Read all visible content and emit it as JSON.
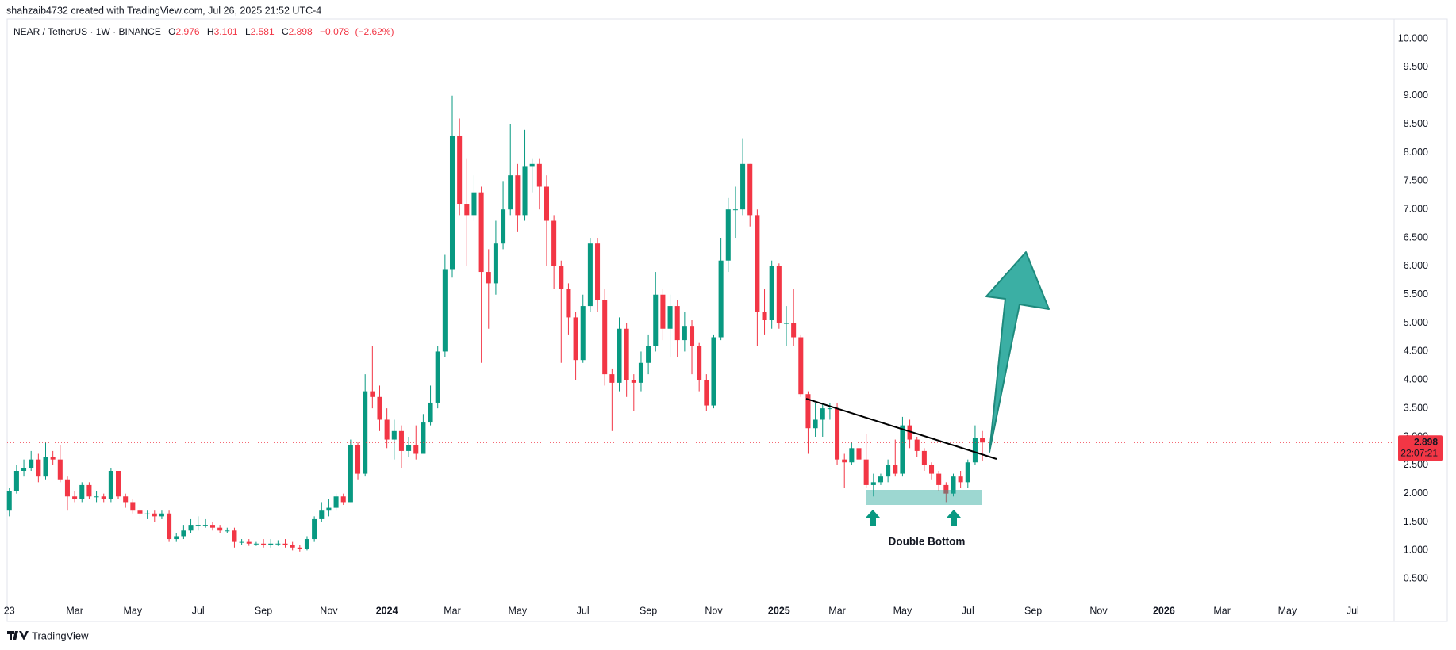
{
  "header": {
    "attribution": "shahzaib4732 created with TradingView.com, Jul 26, 2025 21:52 UTC-4"
  },
  "footer": {
    "brand": "TradingView"
  },
  "chart_data": {
    "type": "candlestick",
    "symbol": "NEAR / TetherUS · 1W · BINANCE",
    "ohlc_letters": [
      "O",
      "H",
      "L",
      "C"
    ],
    "change": {
      "value": -0.078,
      "label": "−0.078"
    },
    "change_percent": {
      "value": -2.62,
      "label": "(−2.62%)"
    },
    "countdown": "22:07:21",
    "annotation": "Double Bottom",
    "up_color": "#089981",
    "down_color": "#f23645",
    "grid": false,
    "open": [
      1.7,
      2.05,
      2.4,
      2.45,
      2.6,
      2.3,
      2.65,
      2.6,
      2.25,
      1.95,
      1.9,
      2.15,
      1.95,
      1.95,
      1.9,
      2.4,
      1.95,
      1.85,
      1.7,
      1.65,
      1.65,
      1.6,
      1.65,
      1.2,
      1.25,
      1.35,
      1.45,
      1.45,
      1.45,
      1.4,
      1.35,
      1.35,
      1.15,
      1.15,
      1.12,
      1.12,
      1.1,
      1.12,
      1.12,
      1.1,
      1.05,
      1.02,
      1.2,
      1.55,
      1.7,
      1.75,
      1.95,
      1.85,
      2.85,
      2.35,
      3.8,
      3.7,
      3.3,
      2.95,
      3.1,
      2.75,
      2.85,
      2.7,
      3.25,
      3.6,
      4.5,
      5.95,
      8.3,
      7.1,
      6.9,
      7.3,
      5.9,
      5.7,
      6.4,
      7.0,
      7.6,
      6.9,
      7.75,
      7.8,
      7.4,
      6.8,
      6.0,
      5.6,
      5.1,
      4.35,
      5.3,
      6.4,
      5.4,
      4.1,
      3.95,
      4.9,
      4.0,
      3.95,
      4.3,
      4.6,
      5.5,
      4.9,
      5.3,
      4.7,
      4.95,
      4.6,
      4.0,
      3.55,
      4.75,
      6.1,
      7.0,
      7.0,
      7.8,
      6.9,
      5.2,
      5.05,
      6.0,
      5.0,
      5.0,
      4.75,
      3.75,
      3.15,
      3.3,
      3.5,
      3.5,
      2.6,
      2.55,
      2.8,
      2.6,
      2.15,
      2.2,
      2.3,
      2.5,
      2.35,
      3.2,
      2.95,
      2.75,
      2.5,
      2.35,
      2.15,
      2.0,
      2.3,
      2.2,
      2.55,
      2.976
    ],
    "high": [
      2.1,
      2.5,
      2.6,
      2.75,
      2.7,
      2.9,
      2.75,
      2.85,
      2.3,
      2.05,
      2.2,
      2.2,
      2.05,
      2.0,
      2.45,
      2.4,
      2.0,
      1.9,
      1.75,
      1.7,
      1.7,
      1.7,
      1.7,
      1.3,
      1.45,
      1.55,
      1.6,
      1.55,
      1.5,
      1.45,
      1.4,
      1.4,
      1.2,
      1.2,
      1.15,
      1.2,
      1.2,
      1.18,
      1.2,
      1.15,
      1.1,
      1.25,
      1.6,
      1.85,
      1.9,
      2.0,
      2.0,
      2.95,
      2.9,
      4.1,
      4.6,
      3.9,
      3.5,
      3.3,
      3.2,
      3.0,
      3.2,
      3.4,
      3.9,
      4.6,
      6.2,
      9.0,
      8.6,
      7.9,
      7.6,
      7.4,
      6.3,
      6.8,
      7.5,
      8.5,
      7.8,
      8.4,
      7.9,
      7.9,
      7.6,
      6.9,
      6.1,
      5.7,
      5.2,
      5.5,
      6.5,
      6.5,
      5.6,
      4.2,
      5.1,
      5.0,
      4.1,
      4.5,
      4.8,
      5.9,
      5.6,
      5.5,
      5.4,
      5.2,
      5.05,
      4.65,
      4.1,
      4.8,
      6.5,
      7.2,
      7.4,
      8.25,
      7.8,
      7.0,
      5.6,
      6.1,
      6.05,
      5.3,
      5.6,
      4.8,
      3.8,
      3.6,
      3.6,
      3.6,
      3.6,
      2.7,
      2.9,
      2.85,
      3.05,
      2.35,
      2.35,
      2.6,
      2.95,
      3.35,
      3.3,
      3.0,
      2.8,
      2.55,
      2.4,
      2.2,
      2.35,
      2.4,
      2.6,
      3.2,
      3.101
    ],
    "low": [
      1.6,
      2.0,
      2.3,
      2.4,
      2.2,
      2.25,
      2.5,
      2.2,
      1.7,
      1.85,
      1.85,
      1.9,
      1.85,
      1.85,
      1.85,
      1.9,
      1.75,
      1.65,
      1.55,
      1.55,
      1.5,
      1.55,
      1.15,
      1.15,
      1.2,
      1.3,
      1.35,
      1.4,
      1.35,
      1.3,
      1.3,
      1.05,
      1.1,
      1.08,
      1.08,
      1.05,
      1.05,
      1.08,
      1.05,
      1.0,
      0.98,
      1.0,
      1.15,
      1.5,
      1.6,
      1.7,
      1.8,
      1.85,
      2.25,
      2.3,
      3.5,
      3.1,
      2.8,
      2.6,
      2.45,
      2.65,
      2.6,
      2.7,
      3.2,
      3.5,
      4.4,
      5.8,
      6.9,
      6.0,
      6.8,
      4.3,
      4.9,
      5.5,
      6.3,
      6.9,
      6.6,
      6.8,
      7.3,
      7.0,
      6.0,
      5.6,
      4.3,
      4.8,
      4.0,
      4.3,
      5.2,
      5.2,
      3.9,
      3.1,
      3.8,
      3.7,
      3.45,
      3.8,
      4.1,
      4.5,
      4.7,
      4.4,
      4.4,
      4.5,
      4.1,
      3.8,
      3.45,
      3.5,
      4.7,
      5.9,
      6.5,
      6.9,
      6.7,
      4.6,
      4.8,
      4.9,
      4.9,
      4.6,
      4.6,
      3.7,
      2.7,
      3.0,
      3.0,
      3.3,
      2.5,
      2.1,
      2.5,
      2.45,
      2.1,
      1.95,
      2.15,
      2.2,
      2.3,
      2.3,
      2.8,
      2.65,
      2.4,
      2.25,
      2.05,
      1.85,
      1.95,
      2.1,
      2.1,
      2.5,
      2.581
    ],
    "close": [
      2.05,
      2.4,
      2.45,
      2.6,
      2.3,
      2.65,
      2.6,
      2.25,
      1.95,
      1.9,
      2.15,
      1.95,
      1.95,
      1.9,
      2.4,
      1.95,
      1.85,
      1.7,
      1.65,
      1.65,
      1.6,
      1.65,
      1.2,
      1.25,
      1.35,
      1.45,
      1.45,
      1.45,
      1.4,
      1.35,
      1.35,
      1.15,
      1.15,
      1.12,
      1.12,
      1.1,
      1.12,
      1.12,
      1.1,
      1.05,
      1.02,
      1.2,
      1.55,
      1.7,
      1.75,
      1.95,
      1.85,
      2.85,
      2.35,
      3.8,
      3.7,
      3.3,
      2.95,
      3.1,
      2.75,
      2.85,
      2.7,
      3.25,
      3.6,
      4.5,
      5.95,
      8.3,
      7.1,
      6.9,
      7.3,
      5.9,
      5.7,
      6.4,
      7.0,
      7.6,
      6.9,
      7.75,
      7.8,
      7.4,
      6.8,
      6.0,
      5.6,
      5.1,
      4.35,
      5.3,
      6.4,
      5.4,
      4.1,
      3.95,
      4.9,
      4.0,
      3.95,
      4.3,
      4.6,
      5.5,
      4.9,
      5.3,
      4.7,
      4.95,
      4.6,
      4.0,
      3.55,
      4.75,
      6.1,
      7.0,
      7.0,
      7.8,
      6.9,
      5.2,
      5.05,
      6.0,
      5.0,
      5.0,
      4.75,
      3.75,
      3.15,
      3.3,
      3.5,
      3.5,
      2.6,
      2.55,
      2.8,
      2.6,
      2.15,
      2.2,
      2.3,
      2.5,
      2.35,
      3.2,
      2.95,
      2.75,
      2.5,
      2.35,
      2.15,
      2.0,
      2.3,
      2.2,
      2.55,
      2.976,
      2.898
    ],
    "xlim": [
      -0.3,
      190.7
    ],
    "xticks": [
      {
        "value": 0,
        "label": "23"
      },
      {
        "value": 9,
        "label": "Mar"
      },
      {
        "value": 17,
        "label": "May"
      },
      {
        "value": 26,
        "label": "Jul"
      },
      {
        "value": 35,
        "label": "Sep"
      },
      {
        "value": 44,
        "label": "Nov"
      },
      {
        "value": 52,
        "label": "2024"
      },
      {
        "value": 61,
        "label": "Mar"
      },
      {
        "value": 70,
        "label": "May"
      },
      {
        "value": 79,
        "label": "Jul"
      },
      {
        "value": 88,
        "label": "Sep"
      },
      {
        "value": 97,
        "label": "Nov"
      },
      {
        "value": 106,
        "label": "2025"
      },
      {
        "value": 114,
        "label": "Mar"
      },
      {
        "value": 123,
        "label": "May"
      },
      {
        "value": 132,
        "label": "Jul"
      },
      {
        "value": 141,
        "label": "Sep"
      },
      {
        "value": 150,
        "label": "Nov"
      },
      {
        "value": 159,
        "label": "2026"
      },
      {
        "value": 167,
        "label": "Mar"
      },
      {
        "value": 176,
        "label": "May"
      },
      {
        "value": 185,
        "label": "Jul"
      }
    ],
    "ylim": [
      -0.25,
      10.35
    ],
    "yticks": [
      {
        "value": 0.5,
        "label": "0.500"
      },
      {
        "value": 1,
        "label": "1.000"
      },
      {
        "value": 1.5,
        "label": "1.500"
      },
      {
        "value": 2,
        "label": "2.000"
      },
      {
        "value": 2.5,
        "label": "2.500"
      },
      {
        "value": 3,
        "label": "3.000"
      },
      {
        "value": 3.5,
        "label": "3.500"
      },
      {
        "value": 4,
        "label": "4.000"
      },
      {
        "value": 4.5,
        "label": "4.500"
      },
      {
        "value": 5,
        "label": "5.000"
      },
      {
        "value": 5.5,
        "label": "5.500"
      },
      {
        "value": 6,
        "label": "6.000"
      },
      {
        "value": 6.5,
        "label": "6.500"
      },
      {
        "value": 7,
        "label": "7.000"
      },
      {
        "value": 7.5,
        "label": "7.500"
      },
      {
        "value": 8,
        "label": "8.000"
      },
      {
        "value": 8.5,
        "label": "8.500"
      },
      {
        "value": 9,
        "label": "9.000"
      },
      {
        "value": 9.5,
        "label": "9.500"
      },
      {
        "value": 10,
        "label": "10.000"
      }
    ]
  }
}
